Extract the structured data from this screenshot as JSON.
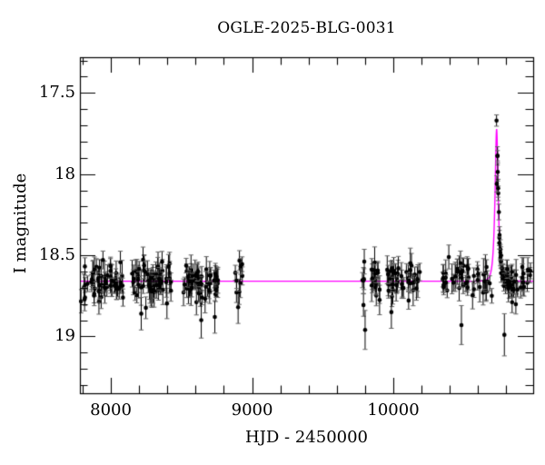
{
  "title": "OGLE-2025-BLG-0031",
  "axes": {
    "xlabel": "HJD - 2450000",
    "ylabel": "I magnitude",
    "x_min": 7781,
    "x_max": 10990,
    "mag_top": 17.28,
    "mag_bottom": 19.35,
    "x_major_ticks": [
      8000,
      9000,
      10000
    ],
    "x_major_tick_labels": [
      "8000",
      "9000",
      "10000"
    ],
    "x_minor_tick_step": 200,
    "y_major_ticks": [
      17.5,
      18.0,
      18.5,
      19.0
    ],
    "y_major_tick_labels": [
      "17.5",
      "18",
      "18.5",
      "19"
    ],
    "y_minor_tick_step": 0.1
  },
  "colors": {
    "background": "#ffffff",
    "frame": "#000000",
    "text": "#000000",
    "marker": "#000000",
    "error_cap": "#666666",
    "model": "#ff00ff"
  },
  "chart_data": {
    "type": "scatter",
    "title": "OGLE-2025-BLG-0031",
    "xlabel": "HJD - 2450000",
    "ylabel": "I magnitude",
    "xlim": [
      7781,
      10990
    ],
    "ylim": [
      19.35,
      17.28
    ],
    "y_axis_inverted": true,
    "grid": false,
    "legend": false,
    "marker": {
      "shape": "filled-circle-with-error-bars",
      "radius_px": 2.3,
      "color": "#000000"
    },
    "model_curve": {
      "name": "microlensing-paczynski-model",
      "type": "paczynski",
      "color": "#ff00ff",
      "baseline_mag": 18.66,
      "t0": 10731,
      "tE": 20,
      "u0": 0.455,
      "peak_mag": 17.73
    },
    "seasons": [
      {
        "name": "season-2017",
        "t_start": 7785,
        "t_end": 8092,
        "n": 60,
        "mag_mean": 18.655,
        "mag_sigma": 0.055
      },
      {
        "name": "season-2018",
        "t_start": 8140,
        "t_end": 8432,
        "n": 60,
        "mag_mean": 18.655,
        "mag_sigma": 0.055
      },
      {
        "name": "season-2019",
        "t_start": 8500,
        "t_end": 8760,
        "n": 54,
        "mag_mean": 18.66,
        "mag_sigma": 0.055
      },
      {
        "name": "season-2019-end",
        "t_start": 8881,
        "t_end": 8933,
        "n": 9,
        "mag_mean": 18.66,
        "mag_sigma": 0.06
      },
      {
        "name": "season-2022",
        "t_start": 9775,
        "t_end": 9905,
        "n": 20,
        "mag_mean": 18.66,
        "mag_sigma": 0.06
      },
      {
        "name": "season-2023",
        "t_start": 9950,
        "t_end": 10205,
        "n": 42,
        "mag_mean": 18.655,
        "mag_sigma": 0.055
      },
      {
        "name": "season-2024-prepeak",
        "t_start": 10337,
        "t_end": 10700,
        "n": 48,
        "mag_mean": 18.655,
        "mag_sigma": 0.055
      },
      {
        "name": "event-decline",
        "t_start": 10734,
        "t_end": 10803,
        "n": 28,
        "follow_model": true,
        "mag_sigma": 0.028
      },
      {
        "name": "season-2024-tail",
        "t_start": 10803,
        "t_end": 10984,
        "n": 32,
        "mag_mean": 18.66,
        "mag_sigma": 0.05
      }
    ],
    "highlight_points": [
      {
        "t": 10730.5,
        "mag": 17.67,
        "err": 0.035
      },
      {
        "t": 10732.5,
        "mag": 18.06,
        "err": 0.05
      }
    ],
    "outlier_points": [
      {
        "t": 8215,
        "mag": 18.86,
        "err": 0.1
      },
      {
        "t": 8640,
        "mag": 18.9,
        "err": 0.11
      },
      {
        "t": 8736,
        "mag": 18.88,
        "err": 0.1
      },
      {
        "t": 8901,
        "mag": 18.82,
        "err": 0.1
      },
      {
        "t": 9800,
        "mag": 18.96,
        "err": 0.12
      },
      {
        "t": 9986,
        "mag": 18.85,
        "err": 0.1
      },
      {
        "t": 10482,
        "mag": 18.93,
        "err": 0.12
      },
      {
        "t": 10786,
        "mag": 18.99,
        "err": 0.13
      }
    ],
    "err_base": 0.045,
    "err_spread": 0.055
  }
}
